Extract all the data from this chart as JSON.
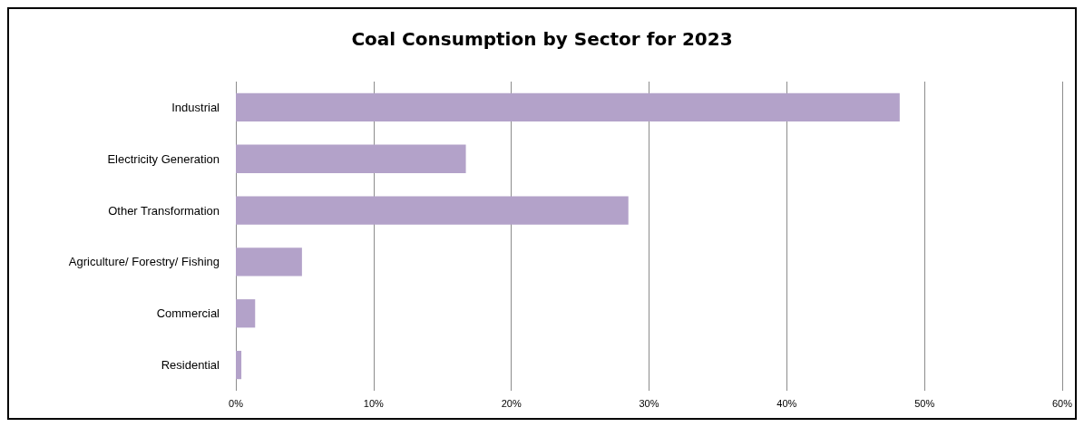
{
  "chart_data": {
    "type": "bar",
    "orientation": "horizontal",
    "title": "Coal Consumption by Sector for 2023",
    "categories": [
      "Industrial",
      "Electricity Generation",
      "Other Transformation",
      "Agriculture/ Forestry/ Fishing",
      "Commercial",
      "Residential"
    ],
    "values": [
      48.2,
      16.7,
      28.5,
      4.8,
      1.4,
      0.4
    ],
    "color": "#b3a2c9",
    "xlim": [
      0,
      60
    ],
    "xticks": [
      {
        "value": 0,
        "label": "0%"
      },
      {
        "value": 10,
        "label": "10%"
      },
      {
        "value": 20,
        "label": "20%"
      },
      {
        "value": 30,
        "label": "30%"
      },
      {
        "value": 40,
        "label": "40%"
      },
      {
        "value": 50,
        "label": "50%"
      },
      {
        "value": 60,
        "label": "60%"
      }
    ],
    "grid": "x"
  }
}
